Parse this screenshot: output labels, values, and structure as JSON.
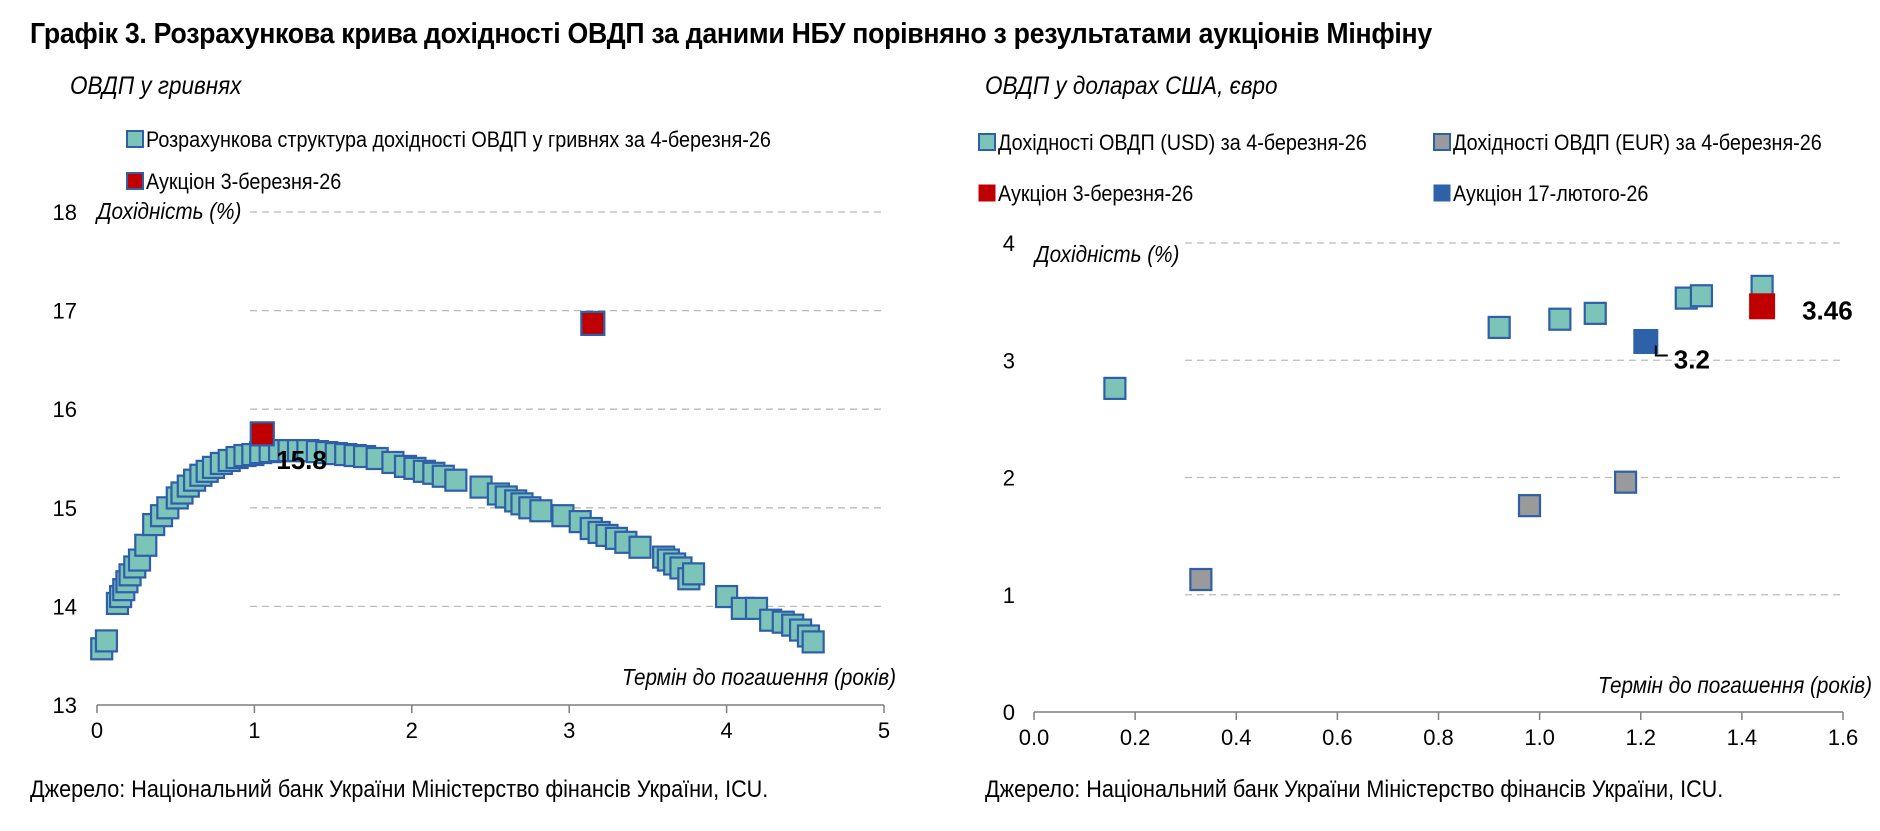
{
  "title": "Графік 3. Розрахункова крива дохідності ОВДП за даними НБУ порівняно з результатами аукціонів Мінфіну",
  "source_note": "Джерело: Національний банк України Міністерство фінансів України, ICU.",
  "colors": {
    "teal_fill": "#7CC4B8",
    "blue_border": "#2E5FA8",
    "red": "#C00000",
    "grey": "#9A9A9A",
    "navy": "#2E62A8",
    "grid": "#BBBBBB"
  },
  "chart_data": [
    {
      "type": "scatter",
      "subtitle": "ОВДП у гривнях",
      "ylabel": "Дохідність (%)",
      "xlabel": "Термін до погашення (років)",
      "xlim": [
        0,
        5
      ],
      "ylim": [
        13,
        18
      ],
      "xticks": [
        "0",
        "1",
        "2",
        "3",
        "4",
        "5"
      ],
      "yticks": [
        "13",
        "14",
        "15",
        "16",
        "17",
        "18"
      ],
      "grid": true,
      "legend_placement": "top",
      "series": [
        {
          "name": "Розрахункова структура дохідності ОВДП у гривнях за 4-березня-26",
          "marker": "teal-square",
          "points": [
            [
              0.03,
              13.57
            ],
            [
              0.06,
              13.65
            ],
            [
              0.13,
              14.03
            ],
            [
              0.15,
              14.1
            ],
            [
              0.17,
              14.17
            ],
            [
              0.19,
              14.25
            ],
            [
              0.21,
              14.32
            ],
            [
              0.24,
              14.4
            ],
            [
              0.27,
              14.47
            ],
            [
              0.31,
              14.62
            ],
            [
              0.36,
              14.83
            ],
            [
              0.41,
              14.92
            ],
            [
              0.45,
              15.0
            ],
            [
              0.51,
              15.1
            ],
            [
              0.54,
              15.15
            ],
            [
              0.58,
              15.22
            ],
            [
              0.62,
              15.28
            ],
            [
              0.66,
              15.33
            ],
            [
              0.7,
              15.37
            ],
            [
              0.74,
              15.41
            ],
            [
              0.79,
              15.45
            ],
            [
              0.84,
              15.48
            ],
            [
              0.89,
              15.51
            ],
            [
              0.94,
              15.53
            ],
            [
              0.99,
              15.54
            ],
            [
              1.04,
              15.56
            ],
            [
              1.1,
              15.57
            ],
            [
              1.16,
              15.58
            ],
            [
              1.22,
              15.58
            ],
            [
              1.28,
              15.58
            ],
            [
              1.34,
              15.58
            ],
            [
              1.4,
              15.57
            ],
            [
              1.46,
              15.56
            ],
            [
              1.52,
              15.55
            ],
            [
              1.58,
              15.54
            ],
            [
              1.64,
              15.53
            ],
            [
              1.7,
              15.52
            ],
            [
              1.78,
              15.5
            ],
            [
              1.88,
              15.46
            ],
            [
              1.96,
              15.42
            ],
            [
              2.02,
              15.4
            ],
            [
              2.08,
              15.37
            ],
            [
              2.14,
              15.35
            ],
            [
              2.2,
              15.32
            ],
            [
              2.28,
              15.28
            ],
            [
              2.44,
              15.21
            ],
            [
              2.55,
              15.14
            ],
            [
              2.6,
              15.11
            ],
            [
              2.66,
              15.07
            ],
            [
              2.7,
              15.04
            ],
            [
              2.75,
              15.0
            ],
            [
              2.82,
              14.97
            ],
            [
              2.96,
              14.92
            ],
            [
              3.07,
              14.86
            ],
            [
              3.14,
              14.79
            ],
            [
              3.19,
              14.75
            ],
            [
              3.24,
              14.72
            ],
            [
              3.3,
              14.69
            ],
            [
              3.36,
              14.65
            ],
            [
              3.45,
              14.6
            ],
            [
              3.6,
              14.5
            ],
            [
              3.63,
              14.47
            ],
            [
              3.67,
              14.43
            ],
            [
              3.71,
              14.39
            ],
            [
              3.76,
              14.28
            ],
            [
              3.79,
              14.33
            ],
            [
              4.0,
              14.1
            ],
            [
              4.1,
              13.98
            ],
            [
              4.19,
              13.98
            ],
            [
              4.28,
              13.86
            ],
            [
              4.36,
              13.84
            ],
            [
              4.42,
              13.81
            ],
            [
              4.47,
              13.76
            ],
            [
              4.52,
              13.7
            ],
            [
              4.55,
              13.64
            ]
          ]
        },
        {
          "name": "Аукціон 3-березня-26",
          "marker": "red-square",
          "points": [
            [
              1.05,
              15.75
            ],
            [
              3.15,
              16.87
            ]
          ]
        }
      ],
      "annotations": [
        {
          "text": "15.8",
          "x": 1.05,
          "y": 15.75
        }
      ]
    },
    {
      "type": "scatter",
      "subtitle": "ОВДП у доларах США, євро",
      "ylabel": "Дохідність (%)",
      "xlabel": "Термін до погашення (років)",
      "xlim": [
        0,
        1.6
      ],
      "ylim": [
        0,
        4
      ],
      "xticks": [
        "0.0",
        "0.2",
        "0.4",
        "0.6",
        "0.8",
        "1.0",
        "1.2",
        "1.4",
        "1.6"
      ],
      "yticks": [
        "0",
        "1",
        "2",
        "3",
        "4"
      ],
      "grid": true,
      "legend_placement": "top",
      "series": [
        {
          "name": "Дохідності ОВДП (USD) за 4-березня-26",
          "marker": "teal-square",
          "points": [
            [
              0.16,
              2.76
            ],
            [
              0.92,
              3.28
            ],
            [
              1.04,
              3.35
            ],
            [
              1.11,
              3.4
            ],
            [
              1.29,
              3.53
            ],
            [
              1.32,
              3.55
            ],
            [
              1.44,
              3.63
            ]
          ]
        },
        {
          "name": "Дохідності ОВДП (EUR) за 4-березня-26",
          "marker": "grey-square",
          "points": [
            [
              0.33,
              1.13
            ],
            [
              0.98,
              1.76
            ],
            [
              1.17,
              1.96
            ]
          ]
        },
        {
          "name": "Аукціон 3-березня-26",
          "marker": "red-square-solid",
          "points": [
            [
              1.44,
              3.46
            ]
          ]
        },
        {
          "name": "Аукціон 17-лютого-26",
          "marker": "blue-square-solid",
          "points": [
            [
              1.21,
              3.16
            ]
          ]
        }
      ],
      "annotations": [
        {
          "text": "3.46",
          "x": 1.44,
          "y": 3.46
        },
        {
          "text": "3.2",
          "x": 1.21,
          "y": 3.16
        }
      ]
    }
  ]
}
